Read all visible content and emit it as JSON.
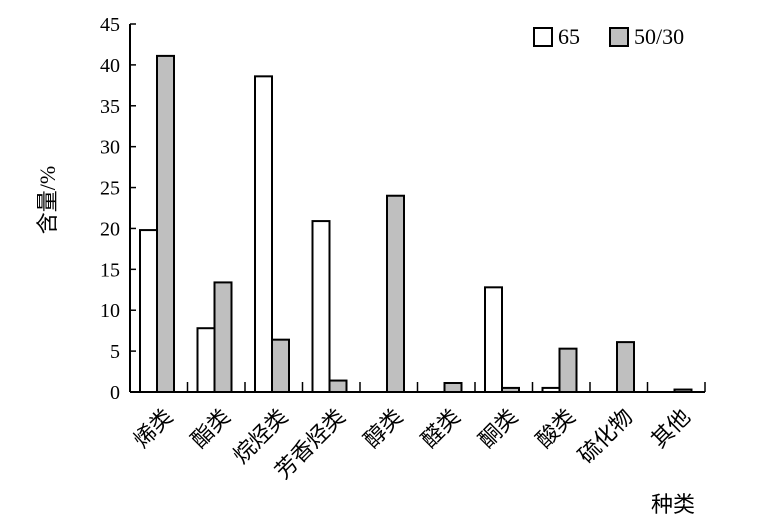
{
  "chart_data": {
    "type": "bar",
    "categories": [
      "烯类",
      "酯类",
      "烷烃类",
      "芳香烃类",
      "醇类",
      "醛类",
      "酮类",
      "酸类",
      "硫化物",
      "其他"
    ],
    "series": [
      {
        "name": "65",
        "values": [
          19.8,
          7.8,
          38.6,
          20.9,
          0,
          0,
          12.8,
          0.5,
          0,
          0
        ],
        "color": "#ffffff"
      },
      {
        "name": "50/30",
        "values": [
          41.1,
          13.4,
          6.4,
          1.4,
          24.0,
          1.1,
          0.5,
          5.3,
          6.1,
          0.3
        ],
        "color": "#bfbfbf"
      }
    ],
    "xlabel": "种类",
    "ylabel": "含量/%",
    "ylim": [
      0,
      45
    ],
    "yticks": [
      "0",
      "5",
      "10",
      "15",
      "20",
      "25",
      "30",
      "35",
      "40",
      "45"
    ],
    "legend_position": "top-right",
    "grid": false
  }
}
